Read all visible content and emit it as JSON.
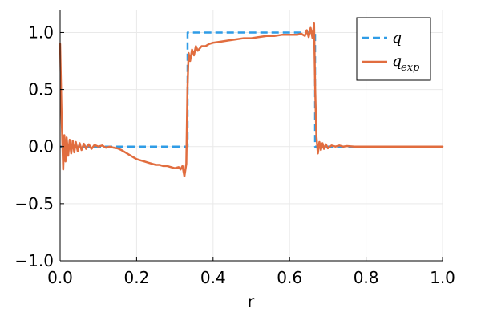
{
  "chart_data": {
    "type": "line",
    "title": "",
    "xlabel": "r",
    "ylabel": "",
    "xlim": [
      0.0,
      1.0
    ],
    "ylim": [
      -1.0,
      1.2
    ],
    "grid": true,
    "legend_position": "top-right",
    "x_ticks": [
      0.0,
      0.2,
      0.4,
      0.6,
      0.8,
      1.0
    ],
    "x_tick_labels": [
      "0.0",
      "0.2",
      "0.4",
      "0.6",
      "0.8",
      "1.0"
    ],
    "y_ticks": [
      -1.0,
      -0.5,
      0.0,
      0.5,
      1.0
    ],
    "y_tick_labels": [
      "−1.0",
      "−0.5",
      "0.0",
      "0.5",
      "1.0"
    ],
    "series": [
      {
        "name": "q",
        "legend_main": "q",
        "legend_sub": "",
        "color": "#2f9ce6",
        "style": "dashed",
        "x": [
          0.0,
          0.3333,
          0.3333,
          0.6667,
          0.6667,
          1.0
        ],
        "y": [
          0.0,
          0.0,
          1.0,
          1.0,
          0.0,
          0.0
        ]
      },
      {
        "name": "q_exp",
        "legend_main": "q",
        "legend_sub": "exp",
        "color": "#e16d3f",
        "style": "solid",
        "x": [
          0.0,
          0.004,
          0.008,
          0.011,
          0.014,
          0.017,
          0.021,
          0.025,
          0.029,
          0.033,
          0.037,
          0.041,
          0.046,
          0.051,
          0.056,
          0.062,
          0.068,
          0.075,
          0.082,
          0.09,
          0.1,
          0.11,
          0.12,
          0.13,
          0.14,
          0.15,
          0.16,
          0.17,
          0.18,
          0.19,
          0.2,
          0.21,
          0.22,
          0.23,
          0.24,
          0.25,
          0.26,
          0.27,
          0.28,
          0.29,
          0.3,
          0.31,
          0.315,
          0.32,
          0.325,
          0.33,
          0.333,
          0.336,
          0.34,
          0.345,
          0.35,
          0.355,
          0.36,
          0.37,
          0.38,
          0.39,
          0.4,
          0.42,
          0.44,
          0.46,
          0.48,
          0.5,
          0.52,
          0.54,
          0.56,
          0.58,
          0.6,
          0.62,
          0.63,
          0.64,
          0.645,
          0.65,
          0.655,
          0.66,
          0.664,
          0.667,
          0.67,
          0.674,
          0.678,
          0.682,
          0.686,
          0.69,
          0.695,
          0.7,
          0.71,
          0.72,
          0.73,
          0.74,
          0.75,
          0.77,
          0.8,
          0.85,
          0.9,
          0.95,
          1.0
        ],
        "y": [
          0.9,
          0.25,
          -0.2,
          0.1,
          -0.13,
          0.08,
          -0.08,
          0.06,
          -0.06,
          0.05,
          -0.05,
          0.04,
          -0.04,
          0.03,
          -0.03,
          0.025,
          -0.02,
          0.02,
          -0.02,
          0.015,
          0.0,
          0.01,
          -0.01,
          0.0,
          -0.01,
          -0.015,
          -0.03,
          -0.05,
          -0.07,
          -0.09,
          -0.11,
          -0.12,
          -0.13,
          -0.14,
          -0.15,
          -0.16,
          -0.16,
          -0.17,
          -0.17,
          -0.18,
          -0.19,
          -0.18,
          -0.2,
          -0.17,
          -0.26,
          -0.15,
          0.5,
          0.82,
          0.75,
          0.85,
          0.8,
          0.88,
          0.84,
          0.88,
          0.88,
          0.9,
          0.91,
          0.92,
          0.93,
          0.94,
          0.95,
          0.95,
          0.96,
          0.97,
          0.97,
          0.98,
          0.98,
          0.98,
          0.99,
          0.97,
          1.02,
          0.96,
          1.04,
          0.95,
          1.08,
          0.5,
          0.1,
          -0.06,
          0.04,
          -0.03,
          0.03,
          -0.02,
          0.02,
          -0.015,
          0.01,
          0.0,
          0.01,
          0.0,
          0.005,
          0.0,
          0.0,
          0.0,
          0.0,
          0.0,
          0.0
        ]
      }
    ]
  }
}
